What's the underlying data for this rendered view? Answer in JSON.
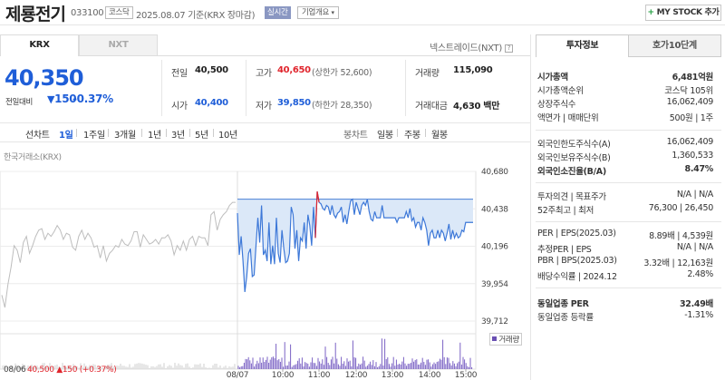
{
  "header": {
    "stock_name": "제룡전기",
    "code": "033100",
    "market_tag": "코스닥",
    "date_text": "2025.08.07  기준(KRX 장마감)",
    "realtime": "실시간",
    "summary_btn": "기업개요",
    "mystock_btn": "MY STOCK 추가"
  },
  "market_tabs": [
    "KRX",
    "NXT"
  ],
  "nextrade_label": "넥스트레이드(NXT)",
  "quote": {
    "price": "40,350",
    "change_label": "전일대비",
    "change": "150",
    "change_pct": "-0.37%",
    "prev_close_label": "전일",
    "prev_close": "40,500",
    "high_label": "고가",
    "high": "40,650",
    "upper_limit": "(상한가 52,600)",
    "volume_label": "거래량",
    "volume": "115,090",
    "open_label": "시가",
    "open": "40,400",
    "low_label": "저가",
    "low": "39,850",
    "lower_limit": "(하한가 28,350)",
    "amount_label": "거래대금",
    "amount": "4,630 백만"
  },
  "period_bar": {
    "line_label": "선차트",
    "line_periods": [
      "1일",
      "1주일",
      "3개월",
      "1년",
      "3년",
      "5년",
      "10년"
    ],
    "active_period": "1일",
    "candle_label": "봉차트",
    "candle_periods": [
      "일봉",
      "주봉",
      "월봉"
    ]
  },
  "chart_source": "한국거래소(KRX)",
  "chart_data": {
    "type": "line",
    "y_ticks": [
      40680,
      40438,
      40196,
      39954,
      39712
    ],
    "y_tick_labels": [
      "40,680",
      "40,438",
      "40,196",
      "39,954",
      "39,712"
    ],
    "ylim": [
      39712,
      40680
    ],
    "baseline": 40500,
    "x_ticks": [
      "08/07",
      "10:00",
      "11:00",
      "12:00",
      "13:00",
      "14:00",
      "15:00"
    ],
    "prev_day_label": "08/06",
    "prev_day_text": "40,500 ▲150 (+0.37%)",
    "volume_label": "거래량",
    "prev_series": [
      39880,
      39800,
      39950,
      40060,
      40200,
      40170,
      40090,
      40220,
      40260,
      40150,
      40200,
      40260,
      40300,
      40310,
      40240,
      40280,
      40260,
      40290,
      40330,
      40300,
      40240,
      40280,
      40270,
      40190,
      40170,
      40260,
      40300,
      40240,
      40280,
      40250,
      40190,
      40200,
      40120,
      40200,
      40100,
      40150,
      40170,
      40200,
      40190,
      40240,
      40210,
      40200,
      40230,
      40290,
      40290,
      40190,
      40270,
      40240,
      40210,
      40220,
      40240,
      40210,
      40250,
      40250,
      40270,
      40230,
      40140,
      40200,
      40170,
      40230,
      40170,
      40240,
      40260,
      40200,
      40260,
      40250,
      40250,
      40200,
      40400,
      40420,
      40300,
      40370,
      40400,
      40420,
      40460,
      40480,
      40480
    ],
    "today_series": [
      40410,
      40140,
      40260,
      40100,
      39900,
      40000,
      40150,
      40180,
      40000,
      40010,
      40200,
      40380,
      40220,
      40460,
      40140,
      40170,
      40100,
      40350,
      40080,
      40200,
      40080,
      40380,
      40150,
      40090,
      40300,
      40180,
      40090,
      40100,
      40150,
      40450,
      40400,
      40180,
      40300,
      40100,
      40250,
      40230,
      40350,
      40180,
      40400,
      40330,
      40200,
      40450,
      40250,
      40550,
      40480,
      40470,
      40440,
      40430,
      40460,
      40450,
      40400,
      40460,
      40400,
      40380,
      40410,
      40420,
      40450,
      40350,
      40400,
      40340,
      40420,
      40490,
      40500,
      40400,
      40480,
      40440,
      40400,
      40460,
      40480,
      40460,
      40500,
      40420,
      40370,
      40360,
      40420,
      40380,
      40380,
      40380,
      40460,
      40380,
      40380,
      40380,
      40380,
      40380,
      40380,
      40380,
      40350,
      40380,
      40380,
      40380,
      40380,
      40420,
      40380,
      40440,
      40360,
      40380,
      40320,
      40350,
      40350,
      40300,
      40380,
      40350,
      40300,
      40200,
      40280,
      40300,
      40250,
      40250,
      40300,
      40250,
      40300,
      40280,
      40230,
      40280,
      40340,
      40240,
      40300,
      40250,
      40280,
      40250,
      40260,
      40300,
      40290,
      40350,
      40350,
      40350,
      40350,
      40350
    ]
  },
  "right_tabs": [
    "투자정보",
    "호가10단계"
  ],
  "invest_info": {
    "market_cap_label": "시가총액",
    "market_cap": "6,481억원",
    "cap_rank_label": "시가총액순위",
    "cap_rank": "코스닥 105위",
    "shares_label": "상장주식수",
    "shares": "16,062,409",
    "par_label": "액면가 | 매매단위",
    "par": "500원 | 1주",
    "foreign_limit_label": "외국인한도주식수(A)",
    "foreign_limit": "16,062,409",
    "foreign_hold_label": "외국인보유주식수(B)",
    "foreign_hold": "1,360,533",
    "foreign_ratio_label": "외국인소진율(B/A)",
    "foreign_ratio": "8.47%",
    "opinion_label": "투자의견 | 목표주가",
    "opinion": "N/A | N/A",
    "w52_label": "52주최고 | 최저",
    "w52": "76,300 | 26,450",
    "per_label": "PER | EPS(2025.03)",
    "per": "8.89배 | 4,539원",
    "est_per_label": "추정PER | EPS",
    "est_per": "N/A | N/A",
    "pbr_label": "PBR | BPS(2025.03)",
    "pbr": "3.32배 | 12,163원",
    "div_label": "배당수익률 | 2024.12",
    "div": "2.48%",
    "sector_per_label": "동일업종 PER",
    "sector_per": "32.49배",
    "sector_chg_label": "동일업종 등락률",
    "sector_chg": "-1.31%"
  }
}
